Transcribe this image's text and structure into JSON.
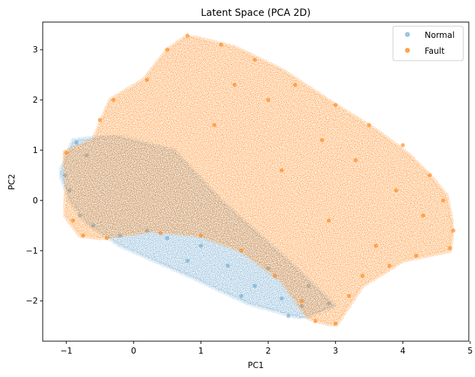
{
  "chart_data": {
    "type": "scatter",
    "title": "Latent Space (PCA 2D)",
    "xlabel": "PC1",
    "ylabel": "PC2",
    "xlim": [
      -1.35,
      4.98
    ],
    "ylim": [
      -2.8,
      3.55
    ],
    "xticks": [
      -1,
      0,
      1,
      2,
      3,
      4,
      5
    ],
    "yticks": [
      -2,
      -1,
      0,
      1,
      2,
      3
    ],
    "xtick_labels": [
      "−1",
      "0",
      "1",
      "2",
      "3",
      "4",
      "5"
    ],
    "ytick_labels": [
      "−2",
      "−1",
      "0",
      "1",
      "2",
      "3"
    ],
    "grid": false,
    "legend_position": "top-right",
    "series": [
      {
        "name": "Normal",
        "color": "#1f77b4",
        "alpha": 0.35,
        "region": [
          [
            -1.1,
            0.55
          ],
          [
            -0.9,
            1.2
          ],
          [
            -0.3,
            1.3
          ],
          [
            0.6,
            1.0
          ],
          [
            1.3,
            0.0
          ],
          [
            2.3,
            -1.2
          ],
          [
            3.0,
            -2.1
          ],
          [
            2.5,
            -2.35
          ],
          [
            1.7,
            -2.05
          ],
          [
            0.9,
            -1.55
          ],
          [
            -0.2,
            -0.9
          ],
          [
            -0.7,
            -0.45
          ],
          [
            -0.95,
            0.0
          ]
        ],
        "points": [
          [
            -1.02,
            0.5
          ],
          [
            -0.95,
            0.2
          ],
          [
            -0.85,
            1.15
          ],
          [
            -0.8,
            -0.3
          ],
          [
            -0.7,
            0.9
          ],
          [
            -0.6,
            -0.5
          ],
          [
            -0.2,
            -0.7
          ],
          [
            0.2,
            -0.6
          ],
          [
            0.5,
            -0.75
          ],
          [
            1.0,
            -0.9
          ],
          [
            1.4,
            -1.3
          ],
          [
            1.8,
            -1.7
          ],
          [
            2.2,
            -1.95
          ],
          [
            2.5,
            -2.1
          ],
          [
            2.9,
            -2.05
          ],
          [
            2.3,
            -2.3
          ],
          [
            1.6,
            -1.9
          ],
          [
            0.8,
            -1.2
          ],
          [
            2.0,
            -1.35
          ],
          [
            2.6,
            -1.7
          ]
        ]
      },
      {
        "name": "Fault",
        "color": "#ff7f0e",
        "alpha": 0.6,
        "region": [
          [
            -1.05,
            0.95
          ],
          [
            -0.6,
            1.2
          ],
          [
            -0.35,
            2.0
          ],
          [
            0.15,
            2.4
          ],
          [
            0.5,
            3.0
          ],
          [
            0.8,
            3.28
          ],
          [
            1.5,
            3.05
          ],
          [
            2.2,
            2.6
          ],
          [
            3.0,
            1.9
          ],
          [
            3.6,
            1.4
          ],
          [
            4.1,
            0.9
          ],
          [
            4.4,
            0.5
          ],
          [
            4.65,
            0.1
          ],
          [
            4.75,
            -0.55
          ],
          [
            4.7,
            -1.0
          ],
          [
            4.0,
            -1.2
          ],
          [
            3.4,
            -1.7
          ],
          [
            3.0,
            -2.5
          ],
          [
            2.6,
            -2.35
          ],
          [
            2.2,
            -1.6
          ],
          [
            1.6,
            -1.0
          ],
          [
            1.0,
            -0.7
          ],
          [
            0.3,
            -0.6
          ],
          [
            -0.5,
            -0.75
          ],
          [
            -0.8,
            -0.7
          ],
          [
            -1.02,
            -0.3
          ],
          [
            -1.0,
            0.4
          ]
        ],
        "points": [
          [
            -1.0,
            0.95
          ],
          [
            -0.9,
            -0.4
          ],
          [
            -0.5,
            1.6
          ],
          [
            -0.3,
            2.0
          ],
          [
            0.2,
            2.4
          ],
          [
            0.5,
            3.0
          ],
          [
            0.8,
            3.28
          ],
          [
            1.3,
            3.1
          ],
          [
            1.8,
            2.8
          ],
          [
            2.4,
            2.3
          ],
          [
            3.0,
            1.9
          ],
          [
            3.5,
            1.5
          ],
          [
            4.0,
            1.1
          ],
          [
            4.4,
            0.5
          ],
          [
            4.6,
            0.0
          ],
          [
            4.75,
            -0.6
          ],
          [
            4.7,
            -0.95
          ],
          [
            4.2,
            -1.1
          ],
          [
            3.8,
            -1.3
          ],
          [
            3.4,
            -1.5
          ],
          [
            3.2,
            -1.9
          ],
          [
            3.0,
            -2.45
          ],
          [
            2.7,
            -2.4
          ],
          [
            2.5,
            -2.0
          ],
          [
            2.1,
            -1.5
          ],
          [
            1.6,
            -1.0
          ],
          [
            1.0,
            -0.7
          ],
          [
            0.4,
            -0.65
          ],
          [
            -0.4,
            -0.75
          ],
          [
            -0.75,
            -0.7
          ],
          [
            1.5,
            2.3
          ],
          [
            2.0,
            2.0
          ],
          [
            2.8,
            1.2
          ],
          [
            3.3,
            0.8
          ],
          [
            3.9,
            0.2
          ],
          [
            4.3,
            -0.3
          ],
          [
            3.6,
            -0.9
          ],
          [
            2.9,
            -0.4
          ],
          [
            2.2,
            0.6
          ],
          [
            1.2,
            1.5
          ]
        ]
      }
    ]
  }
}
